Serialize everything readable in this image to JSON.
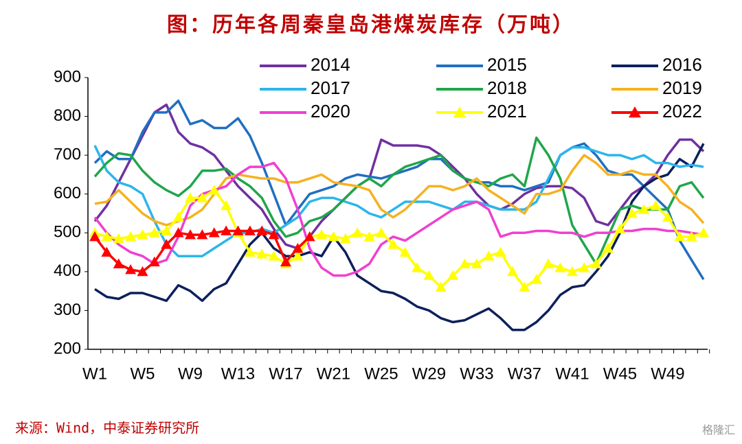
{
  "chart_data": {
    "type": "line",
    "title": "图：历年各周秦皇岛港煤炭库存（万吨）",
    "source": "来源：Wind，中泰证券研究所",
    "watermark": "格隆汇",
    "categories": [
      "W1",
      null,
      null,
      null,
      "W5",
      null,
      null,
      null,
      "W9",
      null,
      null,
      null,
      "W13",
      null,
      null,
      null,
      "W17",
      null,
      null,
      null,
      "W21",
      null,
      null,
      null,
      "W25",
      null,
      null,
      null,
      "W29",
      null,
      null,
      null,
      "W33",
      null,
      null,
      null,
      "W37",
      null,
      null,
      null,
      "W41",
      null,
      null,
      null,
      "W45",
      null,
      null,
      null,
      "W49",
      null,
      null,
      null
    ],
    "ylim": [
      200,
      900
    ],
    "yticks": [
      200,
      300,
      400,
      500,
      600,
      700,
      800,
      900
    ],
    "series": [
      {
        "name": "2014",
        "color": "#7030a0",
        "values": [
          530,
          570,
          630,
          690,
          750,
          810,
          830,
          760,
          730,
          720,
          700,
          660,
          620,
          590,
          560,
          510,
          470,
          460,
          490,
          530,
          560,
          590,
          620,
          640,
          740,
          725,
          725,
          725,
          720,
          700,
          670,
          640,
          600,
          570,
          560,
          575,
          600,
          615,
          620,
          620,
          615,
          590,
          530,
          520,
          560,
          600,
          620,
          650,
          700,
          740,
          740,
          710
        ]
      },
      {
        "name": "2015",
        "color": "#1f6fc0",
        "values": [
          680,
          710,
          690,
          690,
          760,
          810,
          810,
          840,
          780,
          790,
          770,
          770,
          795,
          750,
          680,
          600,
          520,
          560,
          600,
          610,
          620,
          640,
          650,
          645,
          640,
          650,
          660,
          670,
          690,
          690,
          660,
          640,
          630,
          630,
          620,
          620,
          610,
          620,
          630,
          700,
          720,
          730,
          700,
          660,
          650,
          650,
          620,
          590,
          560,
          480,
          430,
          380
        ]
      },
      {
        "name": "2016",
        "color": "#0d1f5c",
        "values": [
          355,
          335,
          330,
          345,
          345,
          335,
          325,
          365,
          350,
          325,
          355,
          370,
          420,
          470,
          500,
          460,
          440,
          440,
          450,
          440,
          490,
          450,
          390,
          370,
          350,
          345,
          330,
          310,
          300,
          280,
          270,
          275,
          290,
          305,
          280,
          250,
          250,
          270,
          300,
          340,
          360,
          365,
          400,
          440,
          500,
          580,
          620,
          640,
          650,
          690,
          670,
          730
        ]
      },
      {
        "name": "2017",
        "color": "#2cb5ea",
        "values": [
          725,
          660,
          630,
          620,
          600,
          530,
          470,
          440,
          440,
          440,
          460,
          480,
          500,
          500,
          510,
          500,
          520,
          540,
          580,
          590,
          590,
          580,
          570,
          550,
          540,
          560,
          580,
          580,
          580,
          570,
          560,
          580,
          580,
          570,
          560,
          560,
          560,
          580,
          640,
          700,
          720,
          720,
          710,
          700,
          700,
          690,
          700,
          680,
          680,
          670,
          675,
          670
        ]
      },
      {
        "name": "2018",
        "color": "#1fa64a",
        "values": [
          645,
          680,
          705,
          700,
          660,
          630,
          610,
          595,
          620,
          660,
          660,
          665,
          640,
          620,
          590,
          530,
          490,
          500,
          530,
          540,
          560,
          590,
          620,
          640,
          620,
          650,
          670,
          680,
          690,
          700,
          660,
          640,
          630,
          620,
          640,
          650,
          620,
          745,
          700,
          640,
          520,
          470,
          420,
          490,
          560,
          570,
          560,
          560,
          560,
          620,
          630,
          590
        ]
      },
      {
        "name": "2019",
        "color": "#f5b21f",
        "values": [
          575,
          580,
          610,
          580,
          550,
          530,
          520,
          530,
          540,
          560,
          600,
          640,
          650,
          645,
          640,
          640,
          630,
          630,
          640,
          650,
          630,
          625,
          620,
          610,
          560,
          540,
          560,
          590,
          620,
          620,
          610,
          620,
          640,
          610,
          590,
          570,
          550,
          600,
          600,
          610,
          660,
          700,
          680,
          650,
          650,
          660,
          650,
          650,
          620,
          580,
          560,
          525
        ]
      },
      {
        "name": "2020",
        "color": "#f03fd1",
        "values": [
          540,
          500,
          470,
          450,
          440,
          420,
          430,
          490,
          570,
          600,
          610,
          620,
          650,
          670,
          670,
          680,
          640,
          560,
          460,
          410,
          390,
          390,
          400,
          420,
          470,
          490,
          480,
          500,
          520,
          540,
          560,
          570,
          580,
          560,
          490,
          500,
          500,
          505,
          505,
          500,
          500,
          490,
          500,
          500,
          505,
          505,
          510,
          510,
          505,
          505,
          500,
          495
        ]
      },
      {
        "name": "2021",
        "color": "#ffff00",
        "marker": "triangle",
        "values": [
          500,
          490,
          485,
          490,
          495,
          500,
          505,
          540,
          590,
          590,
          610,
          570,
          500,
          450,
          445,
          440,
          420,
          440,
          490,
          495,
          490,
          485,
          500,
          490,
          500,
          470,
          450,
          410,
          390,
          360,
          390,
          420,
          420,
          440,
          450,
          400,
          360,
          380,
          420,
          410,
          400,
          410,
          420,
          460,
          510,
          550,
          560,
          570,
          540,
          490,
          490,
          500
        ]
      },
      {
        "name": "2022",
        "color": "#ff0000",
        "marker": "triangle",
        "values": [
          490,
          450,
          420,
          405,
          400,
          425,
          470,
          500,
          495,
          495,
          500,
          505,
          505,
          505,
          505,
          495,
          425,
          460,
          490,
          null,
          null,
          null,
          null,
          null,
          null,
          null,
          null,
          null,
          null,
          null,
          null,
          null,
          null,
          null,
          null,
          null,
          null,
          null,
          null,
          null,
          null,
          null,
          null,
          null,
          null,
          null,
          null,
          null,
          null,
          null,
          null,
          null
        ]
      }
    ]
  }
}
